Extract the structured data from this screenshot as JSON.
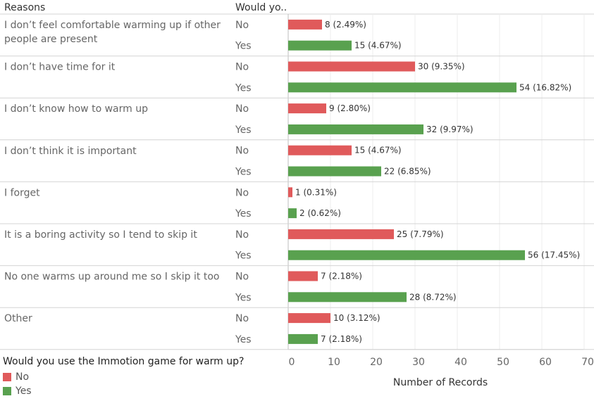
{
  "headers": {
    "reasons": "Reasons",
    "response": "Would yo.."
  },
  "legend": {
    "title": "Would you use the Immotion game for warm up?",
    "items": [
      {
        "label": "No",
        "color": "#e05a5b"
      },
      {
        "label": "Yes",
        "color": "#59a14f"
      }
    ]
  },
  "chart_data": {
    "type": "bar",
    "orientation": "horizontal",
    "xlabel": "Number of Records",
    "xlim": [
      0,
      70
    ],
    "xticks": [
      0,
      10,
      20,
      30,
      40,
      50,
      60,
      70
    ],
    "grid": true,
    "legend_position": "bottom-left",
    "colors": {
      "No": "#e05a5b",
      "Yes": "#59a14f"
    },
    "groups": [
      {
        "reason": [
          "I don’t feel comfortable warming up if other",
          "people are present"
        ],
        "rows": [
          {
            "response": "No",
            "value": 8,
            "label": "8 (2.49%)"
          },
          {
            "response": "Yes",
            "value": 15,
            "label": "15 (4.67%)"
          }
        ]
      },
      {
        "reason": [
          "I don’t have time for it"
        ],
        "rows": [
          {
            "response": "No",
            "value": 30,
            "label": "30 (9.35%)"
          },
          {
            "response": "Yes",
            "value": 54,
            "label": "54 (16.82%)"
          }
        ]
      },
      {
        "reason": [
          "I don’t know how to warm up"
        ],
        "rows": [
          {
            "response": "No",
            "value": 9,
            "label": "9 (2.80%)"
          },
          {
            "response": "Yes",
            "value": 32,
            "label": "32 (9.97%)"
          }
        ]
      },
      {
        "reason": [
          "I don’t think it is important"
        ],
        "rows": [
          {
            "response": "No",
            "value": 15,
            "label": "15 (4.67%)"
          },
          {
            "response": "Yes",
            "value": 22,
            "label": "22 (6.85%)"
          }
        ]
      },
      {
        "reason": [
          "I forget"
        ],
        "rows": [
          {
            "response": "No",
            "value": 1,
            "label": "1 (0.31%)"
          },
          {
            "response": "Yes",
            "value": 2,
            "label": "2 (0.62%)"
          }
        ]
      },
      {
        "reason": [
          "It is a boring activity so I tend to skip it"
        ],
        "rows": [
          {
            "response": "No",
            "value": 25,
            "label": "25 (7.79%)"
          },
          {
            "response": "Yes",
            "value": 56,
            "label": "56 (17.45%)"
          }
        ]
      },
      {
        "reason": [
          "No one warms up around me so I skip it too"
        ],
        "rows": [
          {
            "response": "No",
            "value": 7,
            "label": "7 (2.18%)"
          },
          {
            "response": "Yes",
            "value": 28,
            "label": "28 (8.72%)"
          }
        ]
      },
      {
        "reason": [
          "Other"
        ],
        "rows": [
          {
            "response": "No",
            "value": 10,
            "label": "10 (3.12%)"
          },
          {
            "response": "Yes",
            "value": 7,
            "label": "7 (2.18%)"
          }
        ]
      }
    ]
  }
}
